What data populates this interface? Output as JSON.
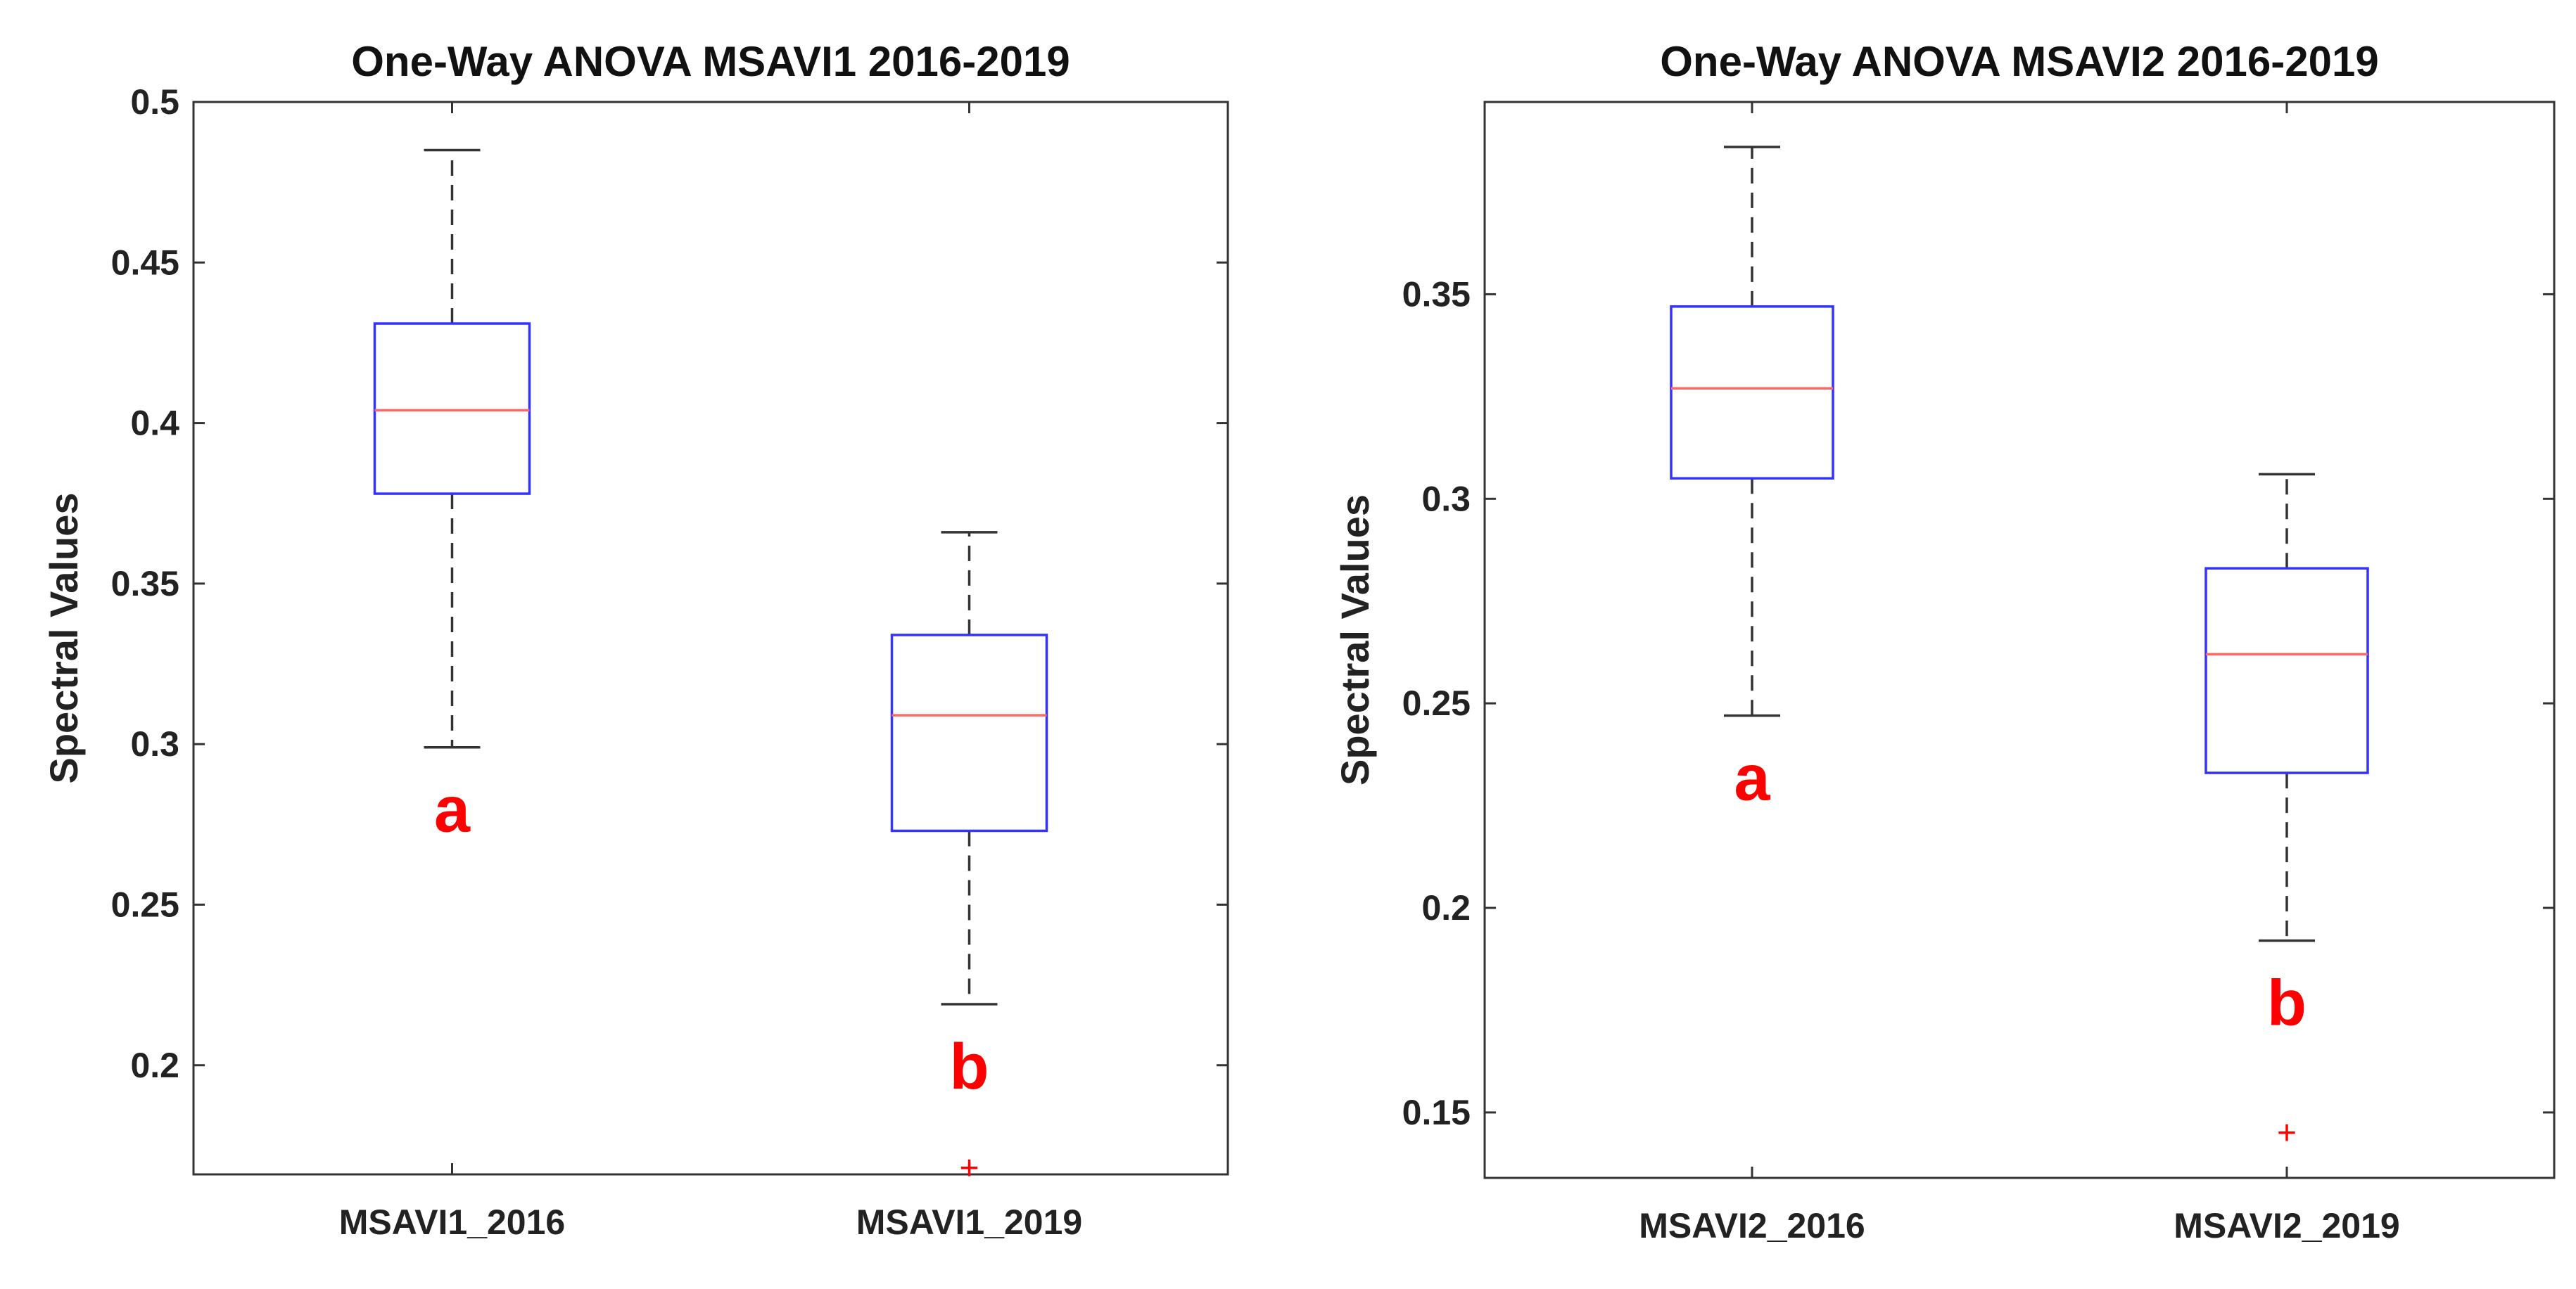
{
  "chart_data": [
    {
      "type": "boxplot",
      "title": "One-Way ANOVA MSAVI1 2016-2019",
      "ylabel": "Spectral Values",
      "xlabel": "",
      "ylim": [
        0.166,
        0.5
      ],
      "yticks": [
        0.2,
        0.25,
        0.3,
        0.35,
        0.4,
        0.45,
        0.5
      ],
      "ytick_labels": [
        "0.2",
        "0.25",
        "0.3",
        "0.35",
        "0.4",
        "0.45",
        "0.5"
      ],
      "categories": [
        "MSAVI1_2016",
        "MSAVI1_2019"
      ],
      "groups": [
        {
          "name": "MSAVI1_2016",
          "whisker_low": 0.299,
          "q1": 0.378,
          "median": 0.404,
          "q3": 0.431,
          "whisker_high": 0.485,
          "outliers": [],
          "letter": "a"
        },
        {
          "name": "MSAVI1_2019",
          "whisker_low": 0.219,
          "q1": 0.273,
          "median": 0.309,
          "q3": 0.334,
          "whisker_high": 0.366,
          "outliers": [
            0.168
          ],
          "letter": "b"
        }
      ]
    },
    {
      "type": "boxplot",
      "title": "One-Way ANOVA MSAVI2 2016-2019",
      "ylabel": "Spectral Values",
      "xlabel": "",
      "ylim": [
        0.134,
        0.397
      ],
      "yticks": [
        0.15,
        0.2,
        0.25,
        0.3,
        0.35
      ],
      "ytick_labels": [
        "0.15",
        "0.2",
        "0.25",
        "0.3",
        "0.35"
      ],
      "categories": [
        "MSAVI2_2016",
        "MSAVI2_2019"
      ],
      "groups": [
        {
          "name": "MSAVI2_2016",
          "whisker_low": 0.247,
          "q1": 0.305,
          "median": 0.327,
          "q3": 0.347,
          "whisker_high": 0.386,
          "outliers": [],
          "letter": "a"
        },
        {
          "name": "MSAVI2_2019",
          "whisker_low": 0.192,
          "q1": 0.233,
          "median": 0.262,
          "q3": 0.283,
          "whisker_high": 0.306,
          "outliers": [
            0.145
          ],
          "letter": "b"
        }
      ]
    }
  ],
  "colors": {
    "box": "#3333ff",
    "median": "#ff6666",
    "whisker": "#333333",
    "outlier": "#ff0000",
    "letter": "#ff0000"
  }
}
